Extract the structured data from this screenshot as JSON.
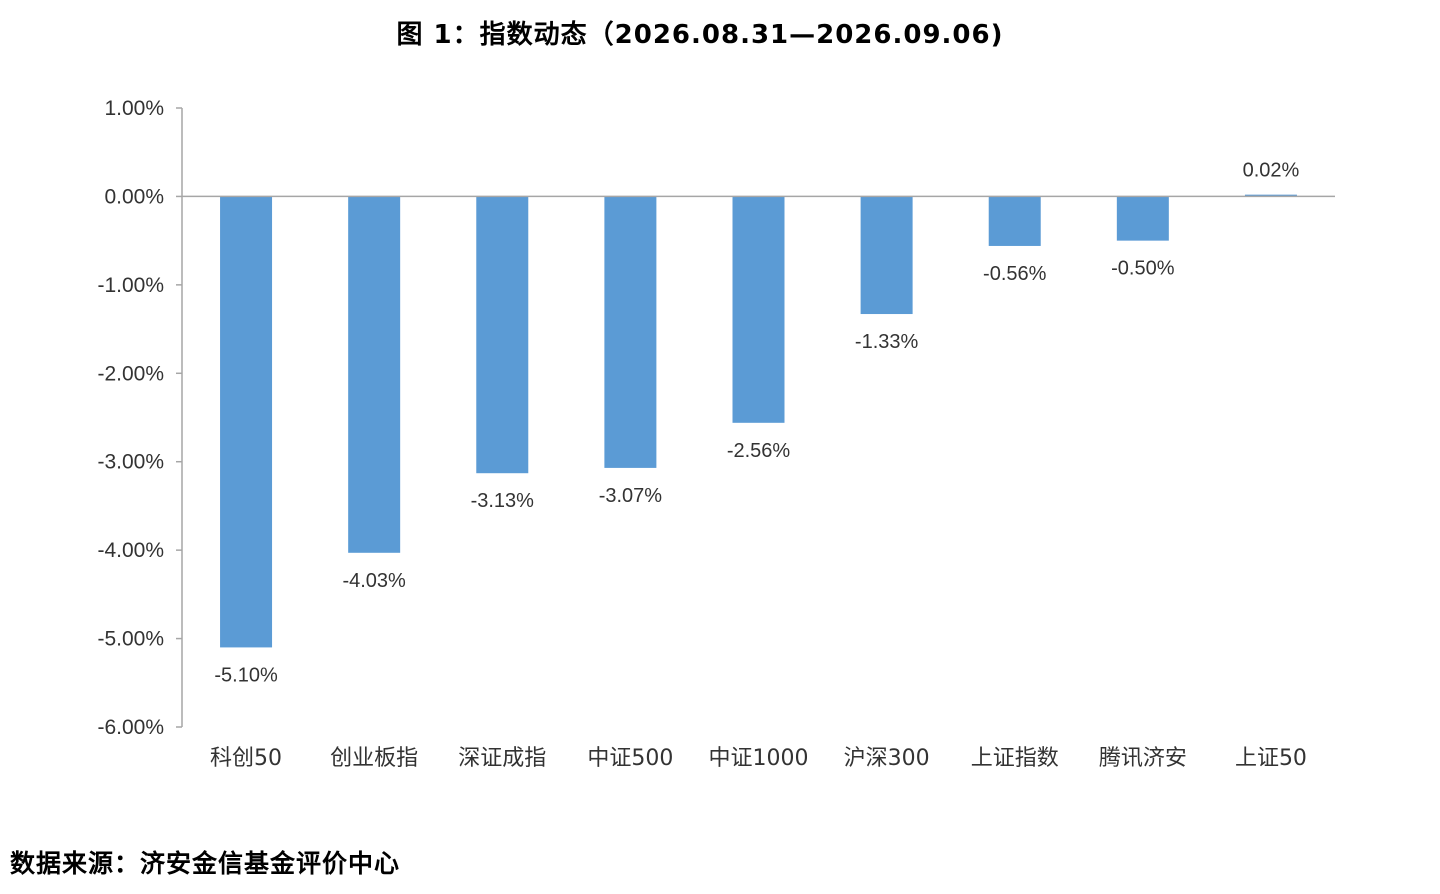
{
  "page": {
    "title": "图 1：指数动态（2026.08.31—2026.09.06)",
    "source_note": "数据来源：济安金信基金评价中心"
  },
  "chart_data": {
    "type": "bar",
    "title": "图 1：指数动态（2026.08.31—2026.09.06)",
    "xlabel": "",
    "ylabel": "",
    "categories": [
      "科创50",
      "创业板指",
      "深证成指",
      "中证500",
      "中证1000",
      "沪深300",
      "上证指数",
      "腾讯济安",
      "上证50"
    ],
    "values": [
      -5.1,
      -4.03,
      -3.13,
      -3.07,
      -2.56,
      -1.33,
      -0.56,
      -0.5,
      0.02
    ],
    "value_labels": [
      "-5.10%",
      "-4.03%",
      "-3.13%",
      "-3.07%",
      "-2.56%",
      "-1.33%",
      "-0.56%",
      "-0.50%",
      "0.02%"
    ],
    "ylim": [
      -6,
      1
    ],
    "yticks": [
      1,
      0,
      -1,
      -2,
      -3,
      -4,
      -5,
      -6
    ],
    "ytick_labels": [
      "1.00%",
      "0.00%",
      "-1.00%",
      "-2.00%",
      "-3.00%",
      "-4.00%",
      "-5.00%",
      "-6.00%"
    ],
    "unit": "%",
    "grid": false,
    "legend": "none",
    "colors": {
      "bar": "#5b9bd5",
      "axis": "#a6a6a6",
      "text": "#333333"
    }
  }
}
